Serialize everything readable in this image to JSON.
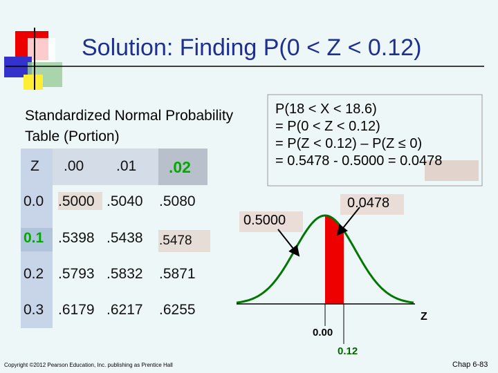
{
  "title": "Solution: Finding P(0 < Z < 0.12)",
  "table_caption": [
    "Standardized Normal Probability",
    "Table (Portion)"
  ],
  "table": {
    "header": [
      "Z",
      ".00",
      ".01",
      ".02"
    ],
    "rows": [
      [
        "0.0",
        ".5000",
        ".5040",
        ".5080"
      ],
      [
        "0.1",
        ".5398",
        ".5438",
        ".5478"
      ],
      [
        "0.2",
        ".5793",
        ".5832",
        ".5871"
      ],
      [
        "0.3",
        ".6179",
        ".6217",
        ".6255"
      ]
    ]
  },
  "equations": [
    "P(18 < X < 18.6)",
    "= P(0 < Z < 0.12)",
    "= P(Z < 0.12) – P(Z ≤ 0)"
  ],
  "result": {
    "text": "= 0.5478 - 0.5000 =",
    "highlight": "0.0478"
  },
  "figure": {
    "left_label": "0.5000",
    "right_label": "0.0478",
    "axis_label": "Z",
    "tick_labels": [
      "0.00",
      "0.12"
    ]
  },
  "footer": {
    "copyright": "Copyright ©2012 Pearson Education, Inc. publishing as Prentice Hall",
    "page": "Chap 6-83"
  }
}
